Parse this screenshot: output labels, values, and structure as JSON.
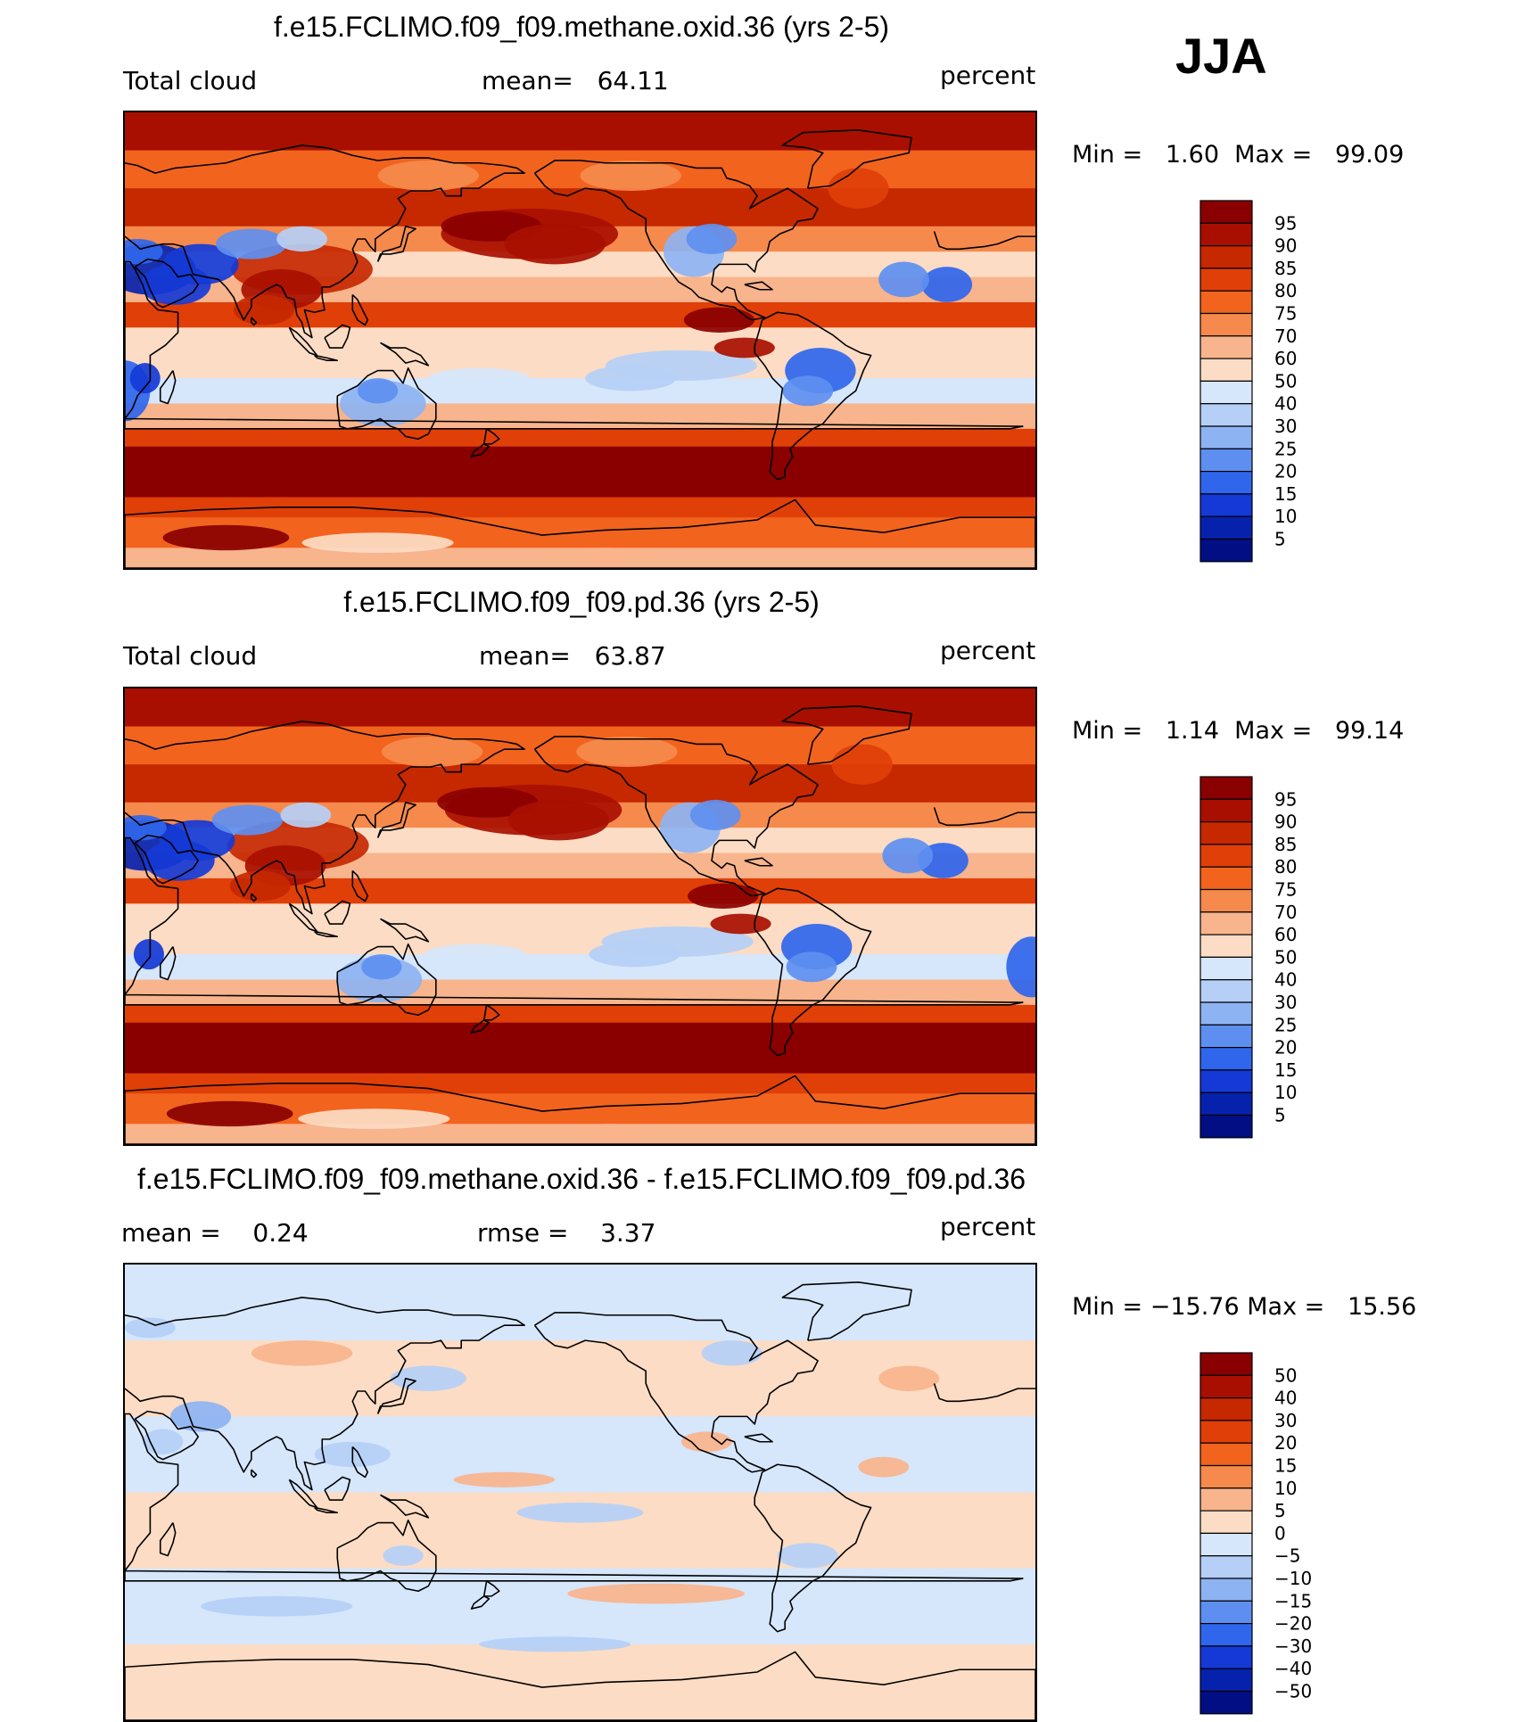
{
  "season": "JJA",
  "panels": [
    {
      "title": "f.e15.FCLIMO.f09_f09.methane.oxid.36 (yrs 2-5)",
      "left_label": "Total cloud",
      "mean_label": "mean=",
      "mean_value": "64.11",
      "units": "percent",
      "min_label": "Min =",
      "min_value": "1.60",
      "max_label": "Max =",
      "max_value": "99.09",
      "field": "abs_a",
      "colorbar": {
        "labels": [
          "95",
          "90",
          "85",
          "80",
          "75",
          "70",
          "60",
          "50",
          "40",
          "30",
          "25",
          "20",
          "15",
          "10",
          "5"
        ],
        "colors": [
          "#8a0000",
          "#a80f00",
          "#c62800",
          "#e03f08",
          "#f2631e",
          "#f58a4c",
          "#f8b48c",
          "#fcdcc4",
          "#d6e6fb",
          "#b5cff6",
          "#8db3f2",
          "#5e8ff0",
          "#2f66ec",
          "#1539d6",
          "#0622ad",
          "#020f84"
        ]
      }
    },
    {
      "title": "f.e15.FCLIMO.f09_f09.pd.36 (yrs 2-5)",
      "left_label": "Total cloud",
      "mean_label": "mean=",
      "mean_value": "63.87",
      "units": "percent",
      "min_label": "Min =",
      "min_value": "1.14",
      "max_label": "Max =",
      "max_value": "99.14",
      "field": "abs_b",
      "colorbar": {
        "labels": [
          "95",
          "90",
          "85",
          "80",
          "75",
          "70",
          "60",
          "50",
          "40",
          "30",
          "25",
          "20",
          "15",
          "10",
          "5"
        ],
        "colors": [
          "#8a0000",
          "#a80f00",
          "#c62800",
          "#e03f08",
          "#f2631e",
          "#f58a4c",
          "#f8b48c",
          "#fcdcc4",
          "#d6e6fb",
          "#b5cff6",
          "#8db3f2",
          "#5e8ff0",
          "#2f66ec",
          "#1539d6",
          "#0622ad",
          "#020f84"
        ]
      }
    },
    {
      "title": "f.e15.FCLIMO.f09_f09.methane.oxid.36 - f.e15.FCLIMO.f09_f09.pd.36",
      "left_label": "mean =",
      "left_value": "0.24",
      "mean_label": "rmse =",
      "mean_value": "3.37",
      "units": "percent",
      "min_label": "Min =",
      "min_value": "−15.76",
      "max_label": "Max =",
      "max_value": "15.56",
      "field": "diff",
      "colorbar": {
        "labels": [
          "50",
          "40",
          "30",
          "20",
          "15",
          "10",
          "5",
          "0",
          "−5",
          "−10",
          "−15",
          "−20",
          "−30",
          "−40",
          "−50"
        ],
        "colors": [
          "#8a0000",
          "#a80f00",
          "#c62800",
          "#e03f08",
          "#f2631e",
          "#f58a4c",
          "#f8b48c",
          "#fcdcc4",
          "#d6e6fb",
          "#b5cff6",
          "#8db3f2",
          "#5e8ff0",
          "#2f66ec",
          "#1539d6",
          "#0622ad",
          "#020f84"
        ]
      }
    }
  ],
  "map_regions": {
    "abs_a": [
      {
        "region": "southern-ocean-storm-track",
        "level": 95
      },
      {
        "region": "arctic-ocean",
        "level": 85
      },
      {
        "region": "north-pacific",
        "level": 90
      },
      {
        "region": "sahara-arabia",
        "level": 10
      },
      {
        "region": "australia",
        "level": 25
      },
      {
        "region": "southern-africa",
        "level": 15
      },
      {
        "region": "brazil",
        "level": 20
      },
      {
        "region": "equatorial-pacific-east",
        "level": 30
      },
      {
        "region": "india-monsoon",
        "level": 90
      }
    ],
    "abs_b": [
      {
        "region": "southern-ocean-storm-track",
        "level": 95
      },
      {
        "region": "arctic-ocean",
        "level": 85
      },
      {
        "region": "north-pacific",
        "level": 90
      },
      {
        "region": "sahara-arabia",
        "level": 10
      },
      {
        "region": "australia",
        "level": 20
      },
      {
        "region": "southern-africa",
        "level": 15
      },
      {
        "region": "brazil",
        "level": 20
      },
      {
        "region": "equatorial-pacific-east",
        "level": 30
      },
      {
        "region": "india-monsoon",
        "level": 90
      }
    ],
    "diff": [
      {
        "region": "global",
        "level": 0
      },
      {
        "region": "mid-latitudes",
        "level": -5
      },
      {
        "region": "tropical-pacific",
        "level": 5
      }
    ]
  }
}
